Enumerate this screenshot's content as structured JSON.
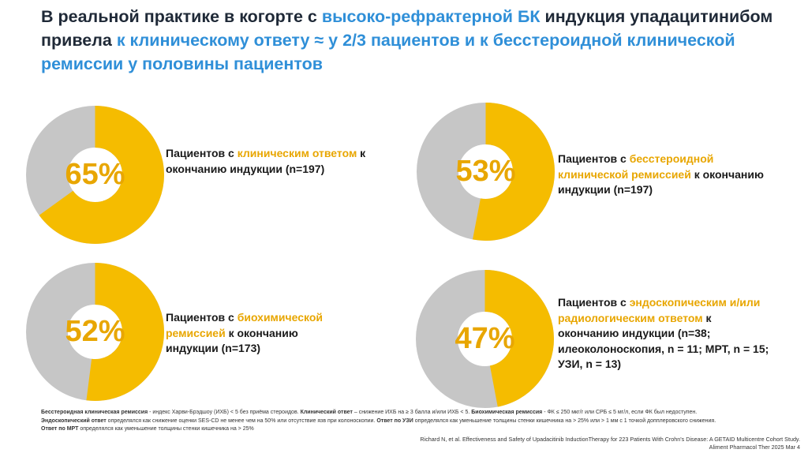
{
  "title": {
    "seg1": "В реальной практике в когорте с ",
    "seg2": "высоко-рефрактерной БК",
    "seg3": " индукция упадацитинибом привела ",
    "seg4": "к клиническому ответу ≈ у 2/3 пациентов и к бесстероидной клинической ремиссии у половины пациентов"
  },
  "colors": {
    "accent": "#f5bc00",
    "track": "#c6c6c6",
    "highlight": "#2f8fd8",
    "pct_text": "#e8a600"
  },
  "chart_data": [
    {
      "type": "pie",
      "variant": "donut",
      "value": 65,
      "value_label": "65%",
      "label_pre": "Пациентов с ",
      "label_accent": "клиническим ответом",
      "label_post": " к окончанию индукции (n=197)"
    },
    {
      "type": "pie",
      "variant": "donut",
      "value": 53,
      "value_label": "53%",
      "label_pre": "Пациентов с ",
      "label_accent": "бесстероидной клинической ремиссией",
      "label_post": " к окончанию индукции (n=197)"
    },
    {
      "type": "pie",
      "variant": "donut",
      "value": 52,
      "value_label": "52%",
      "label_pre": "Пациентов с ",
      "label_accent": "биохимической ремиссией",
      "label_post": " к окончанию индукции (n=173)"
    },
    {
      "type": "pie",
      "variant": "donut",
      "value": 47,
      "value_label": "47%",
      "label_pre": "Пациентов с ",
      "label_accent": "эндоскопическим и/или радиологическим ответом",
      "label_post": " к окончанию индукции (n=38; илеоколоноскопия, n = 11; МРТ, n = 15; УЗИ, n = 13)"
    }
  ],
  "footnotes": {
    "l1a": "Бесстероидная клиническая ремиссия",
    "l1b": " - индекс Харви-Брэдшоу (ИХБ) < 5 без приёма стероидов. ",
    "l1c": "Клинический ответ",
    "l1d": " – снижение ИХБ на ≥ 3 балла и/или ИХБ < 5. ",
    "l1e": "Биохимическая ремиссия",
    "l1f": " - ФК ≤ 250 мкг/г или СРБ ≤ 5 мг/л, если ФК был недоступен.",
    "l2a": "Эндоскопический ответ",
    "l2b": " определялся как снижение оценки SES-CD не менее чем на 50% или отсутствие язв при колоноскопии. ",
    "l2c": "Ответ по УЗИ",
    "l2d": " определялся как уменьшение толщины стенки кишечника на > 25% или > 1 мм с 1 точкой допплеровского снижения.",
    "l3a": "Ответ по МРТ",
    "l3b": " определялся как уменьшение толщины стенки кишечника на > 25%"
  },
  "reference": {
    "line1": "Richard N, et al. Effectiveness and Safety of Upadacitinib InductionTherapy for 223 Patients With Crohn's Disease: A GETAID Multicentre Cohort Study.",
    "line2": "Aliment Pharmacol Ther 2025 Mar 4"
  }
}
